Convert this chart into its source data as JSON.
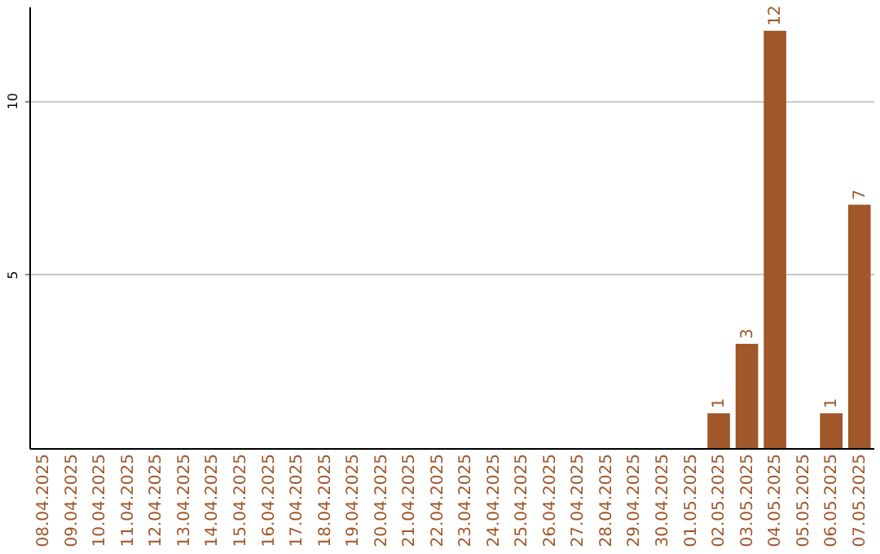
{
  "chart_data": {
    "type": "bar",
    "categories": [
      "08.04.2025",
      "09.04.2025",
      "10.04.2025",
      "11.04.2025",
      "12.04.2025",
      "13.04.2025",
      "14.04.2025",
      "15.04.2025",
      "16.04.2025",
      "17.04.2025",
      "18.04.2025",
      "19.04.2025",
      "20.04.2025",
      "21.04.2025",
      "22.04.2025",
      "23.04.2025",
      "24.04.2025",
      "25.04.2025",
      "26.04.2025",
      "27.04.2025",
      "28.04.2025",
      "29.04.2025",
      "30.04.2025",
      "01.05.2025",
      "02.05.2025",
      "03.05.2025",
      "04.05.2025",
      "05.05.2025",
      "06.05.2025",
      "07.05.2025"
    ],
    "values": [
      0,
      0,
      0,
      0,
      0,
      0,
      0,
      0,
      0,
      0,
      0,
      0,
      0,
      0,
      0,
      0,
      0,
      0,
      0,
      0,
      0,
      0,
      0,
      0,
      1,
      3,
      12,
      0,
      1,
      7
    ],
    "value_labels": [
      null,
      null,
      null,
      null,
      null,
      null,
      null,
      null,
      null,
      null,
      null,
      null,
      null,
      null,
      null,
      null,
      null,
      null,
      null,
      null,
      null,
      null,
      null,
      null,
      "1",
      "3",
      "12",
      null,
      "1",
      "7"
    ],
    "color": "#a0572a",
    "ylim": [
      0,
      12.7
    ],
    "yticks": [
      5,
      10
    ],
    "grid": "y"
  }
}
